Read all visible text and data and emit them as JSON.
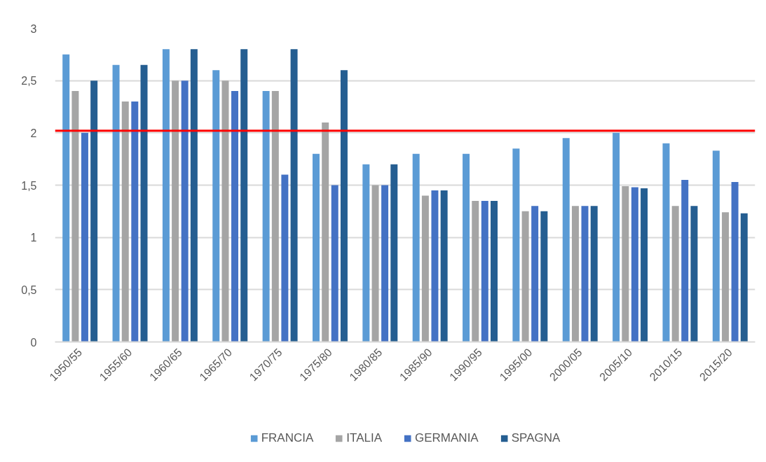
{
  "chart_data": {
    "type": "bar",
    "categories": [
      "1950/55",
      "1955/60",
      "1960/65",
      "1965/70",
      "1970/75",
      "1975/80",
      "1980/85",
      "1985/90",
      "1990/95",
      "1995/00",
      "2000/05",
      "2005/10",
      "2010/15",
      "2015/20"
    ],
    "series": [
      {
        "name": "FRANCIA",
        "color": "#5b9bd5",
        "values": [
          2.75,
          2.65,
          2.8,
          2.6,
          2.4,
          1.8,
          1.7,
          1.8,
          1.8,
          1.85,
          1.95,
          2.0,
          1.9,
          1.83
        ]
      },
      {
        "name": "ITALIA",
        "color": "#a5a5a5",
        "values": [
          2.4,
          2.3,
          2.5,
          2.5,
          2.4,
          2.1,
          1.5,
          1.4,
          1.35,
          1.25,
          1.3,
          1.49,
          1.3,
          1.24
        ]
      },
      {
        "name": "GERMANIA",
        "color": "#4472c4",
        "values": [
          2.0,
          2.3,
          2.5,
          2.4,
          1.6,
          1.5,
          1.5,
          1.45,
          1.35,
          1.3,
          1.3,
          1.48,
          1.55,
          1.53
        ]
      },
      {
        "name": "SPAGNA",
        "color": "#255e91",
        "values": [
          2.5,
          2.65,
          2.8,
          2.8,
          2.8,
          2.6,
          1.7,
          1.45,
          1.35,
          1.25,
          1.3,
          1.47,
          1.3,
          1.23
        ]
      }
    ],
    "ylim": [
      0,
      3
    ],
    "yticks": [
      0,
      {
        "value": 0.5,
        "label": "0,5"
      },
      1,
      {
        "value": 1.5,
        "label": "1,5"
      },
      2,
      {
        "value": 2.5,
        "label": "2,5"
      },
      3
    ],
    "grid": "y",
    "legend": "bottom",
    "ref_lines": [
      {
        "axis": "y",
        "value": 2.02,
        "color": "#ff0000"
      }
    ]
  }
}
